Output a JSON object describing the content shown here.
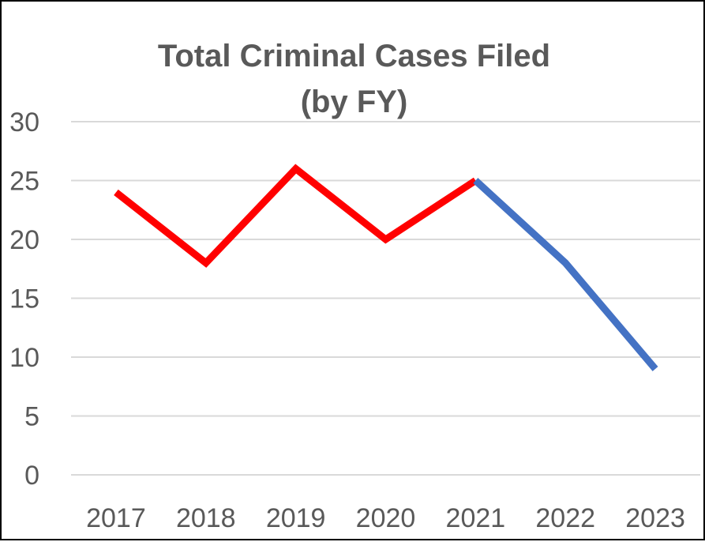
{
  "chart_data": {
    "type": "line",
    "title_lines": [
      "Total Criminal Cases Filed",
      "(by FY)"
    ],
    "categories": [
      "2017",
      "2018",
      "2019",
      "2020",
      "2021",
      "2022",
      "2023"
    ],
    "series": [
      {
        "values": [
          24,
          18,
          26,
          20,
          25,
          null,
          null
        ],
        "color": "#ff0000"
      },
      {
        "values": [
          null,
          null,
          null,
          null,
          25,
          18,
          9
        ],
        "color": "#4472c4"
      }
    ],
    "ylim": [
      0,
      30
    ],
    "yticks": [
      0,
      5,
      10,
      15,
      20,
      25,
      30
    ],
    "grid": true,
    "legend": "none"
  }
}
